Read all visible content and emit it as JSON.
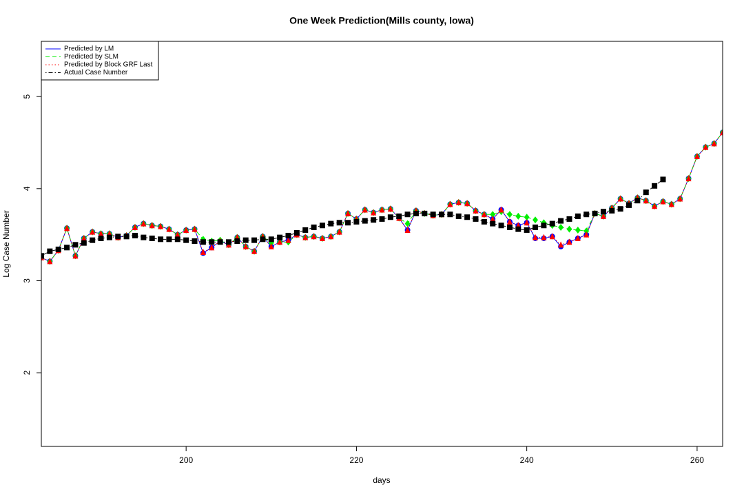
{
  "chart_data": {
    "type": "line",
    "title": "One Week Prediction(Mills county, Iowa)",
    "x_label": "days",
    "y_label": "Log Case Number",
    "xlim": [
      183,
      263
    ],
    "ylim": [
      1.2,
      5.6
    ],
    "xticks": [
      200,
      220,
      240,
      260
    ],
    "yticks": [
      2,
      3,
      4,
      5
    ],
    "legend_position": "top-left",
    "x": [
      183,
      184,
      185,
      186,
      187,
      188,
      189,
      190,
      191,
      192,
      193,
      194,
      195,
      196,
      197,
      198,
      199,
      200,
      201,
      202,
      203,
      204,
      205,
      206,
      207,
      208,
      209,
      210,
      211,
      212,
      213,
      214,
      215,
      216,
      217,
      218,
      219,
      220,
      221,
      222,
      223,
      224,
      225,
      226,
      227,
      228,
      229,
      230,
      231,
      232,
      233,
      234,
      235,
      236,
      237,
      238,
      239,
      240,
      241,
      242,
      243,
      244,
      245,
      246,
      247,
      248,
      249,
      250,
      251,
      252,
      253,
      254,
      255,
      256,
      257,
      258,
      259,
      260,
      261,
      262,
      263
    ],
    "series": [
      {
        "name": "Predicted by LM",
        "color": "#0000ff",
        "line_style": "solid",
        "marker": "circle",
        "values": [
          3.25,
          3.21,
          3.33,
          3.57,
          3.27,
          3.46,
          3.53,
          3.51,
          3.51,
          3.47,
          3.49,
          3.58,
          3.62,
          3.6,
          3.59,
          3.56,
          3.5,
          3.55,
          3.56,
          3.3,
          3.36,
          3.43,
          3.39,
          3.47,
          3.37,
          3.32,
          3.48,
          3.37,
          3.42,
          3.44,
          3.5,
          3.47,
          3.48,
          3.46,
          3.48,
          3.53,
          3.73,
          3.67,
          3.77,
          3.74,
          3.77,
          3.78,
          3.68,
          3.55,
          3.76,
          3.73,
          3.71,
          3.72,
          3.83,
          3.85,
          3.84,
          3.76,
          3.72,
          3.67,
          3.77,
          3.64,
          3.6,
          3.63,
          3.46,
          3.46,
          3.48,
          3.37,
          3.42,
          3.46,
          3.5,
          3.73,
          3.7,
          3.79,
          3.89,
          3.84,
          3.9,
          3.87,
          3.81,
          3.86,
          3.83,
          3.89,
          4.11,
          4.35,
          4.45,
          4.49,
          4.61
        ]
      },
      {
        "name": "Predicted by SLM",
        "color": "#00ee00",
        "line_style": "dashed",
        "marker": "diamond",
        "values": [
          3.25,
          3.21,
          3.33,
          3.57,
          3.27,
          3.46,
          3.53,
          3.51,
          3.51,
          3.47,
          3.49,
          3.58,
          3.62,
          3.6,
          3.59,
          3.56,
          3.5,
          3.55,
          3.56,
          3.45,
          3.43,
          3.44,
          3.39,
          3.47,
          3.37,
          3.32,
          3.48,
          3.41,
          3.42,
          3.42,
          3.5,
          3.47,
          3.48,
          3.46,
          3.48,
          3.53,
          3.73,
          3.67,
          3.77,
          3.74,
          3.77,
          3.78,
          3.68,
          3.62,
          3.76,
          3.73,
          3.71,
          3.72,
          3.83,
          3.85,
          3.84,
          3.76,
          3.72,
          3.72,
          3.75,
          3.72,
          3.7,
          3.69,
          3.66,
          3.63,
          3.6,
          3.58,
          3.56,
          3.55,
          3.54,
          3.73,
          3.7,
          3.79,
          3.89,
          3.84,
          3.9,
          3.87,
          3.81,
          3.86,
          3.83,
          3.89,
          4.11,
          4.35,
          4.45,
          4.49,
          4.61
        ]
      },
      {
        "name": "Predicted by Block GRF Last",
        "color": "#ff0000",
        "line_style": "dotted",
        "marker": "triangle",
        "values": [
          3.25,
          3.21,
          3.33,
          3.57,
          3.27,
          3.46,
          3.53,
          3.51,
          3.51,
          3.47,
          3.49,
          3.58,
          3.62,
          3.6,
          3.59,
          3.56,
          3.5,
          3.55,
          3.56,
          3.31,
          3.36,
          3.43,
          3.39,
          3.47,
          3.37,
          3.32,
          3.48,
          3.37,
          3.42,
          3.44,
          3.5,
          3.47,
          3.48,
          3.46,
          3.48,
          3.53,
          3.73,
          3.67,
          3.77,
          3.74,
          3.77,
          3.78,
          3.68,
          3.55,
          3.76,
          3.73,
          3.71,
          3.72,
          3.83,
          3.85,
          3.84,
          3.76,
          3.72,
          3.67,
          3.77,
          3.64,
          3.6,
          3.63,
          3.47,
          3.47,
          3.48,
          3.39,
          3.42,
          3.46,
          3.5,
          3.73,
          3.7,
          3.79,
          3.89,
          3.84,
          3.9,
          3.87,
          3.81,
          3.86,
          3.83,
          3.89,
          4.11,
          4.35,
          4.45,
          4.49,
          4.61
        ]
      },
      {
        "name": "Actual Case Number",
        "color": "#000000",
        "line_style": "dotdash",
        "marker": "square",
        "values": [
          3.27,
          3.32,
          3.34,
          3.36,
          3.39,
          3.41,
          3.44,
          3.46,
          3.47,
          3.48,
          3.48,
          3.49,
          3.47,
          3.46,
          3.45,
          3.45,
          3.45,
          3.44,
          3.43,
          3.42,
          3.42,
          3.42,
          3.42,
          3.43,
          3.44,
          3.44,
          3.45,
          3.45,
          3.47,
          3.49,
          3.52,
          3.55,
          3.58,
          3.6,
          3.62,
          3.63,
          3.63,
          3.64,
          3.65,
          3.66,
          3.67,
          3.69,
          3.7,
          3.72,
          3.73,
          3.73,
          3.72,
          3.72,
          3.72,
          3.7,
          3.69,
          3.67,
          3.64,
          3.62,
          3.6,
          3.58,
          3.56,
          3.55,
          3.58,
          3.6,
          3.62,
          3.65,
          3.67,
          3.7,
          3.72,
          3.73,
          3.75,
          3.76,
          3.78,
          3.82,
          3.87,
          3.96,
          4.03,
          4.1,
          null,
          null,
          null,
          null,
          null,
          null,
          null
        ]
      }
    ]
  }
}
